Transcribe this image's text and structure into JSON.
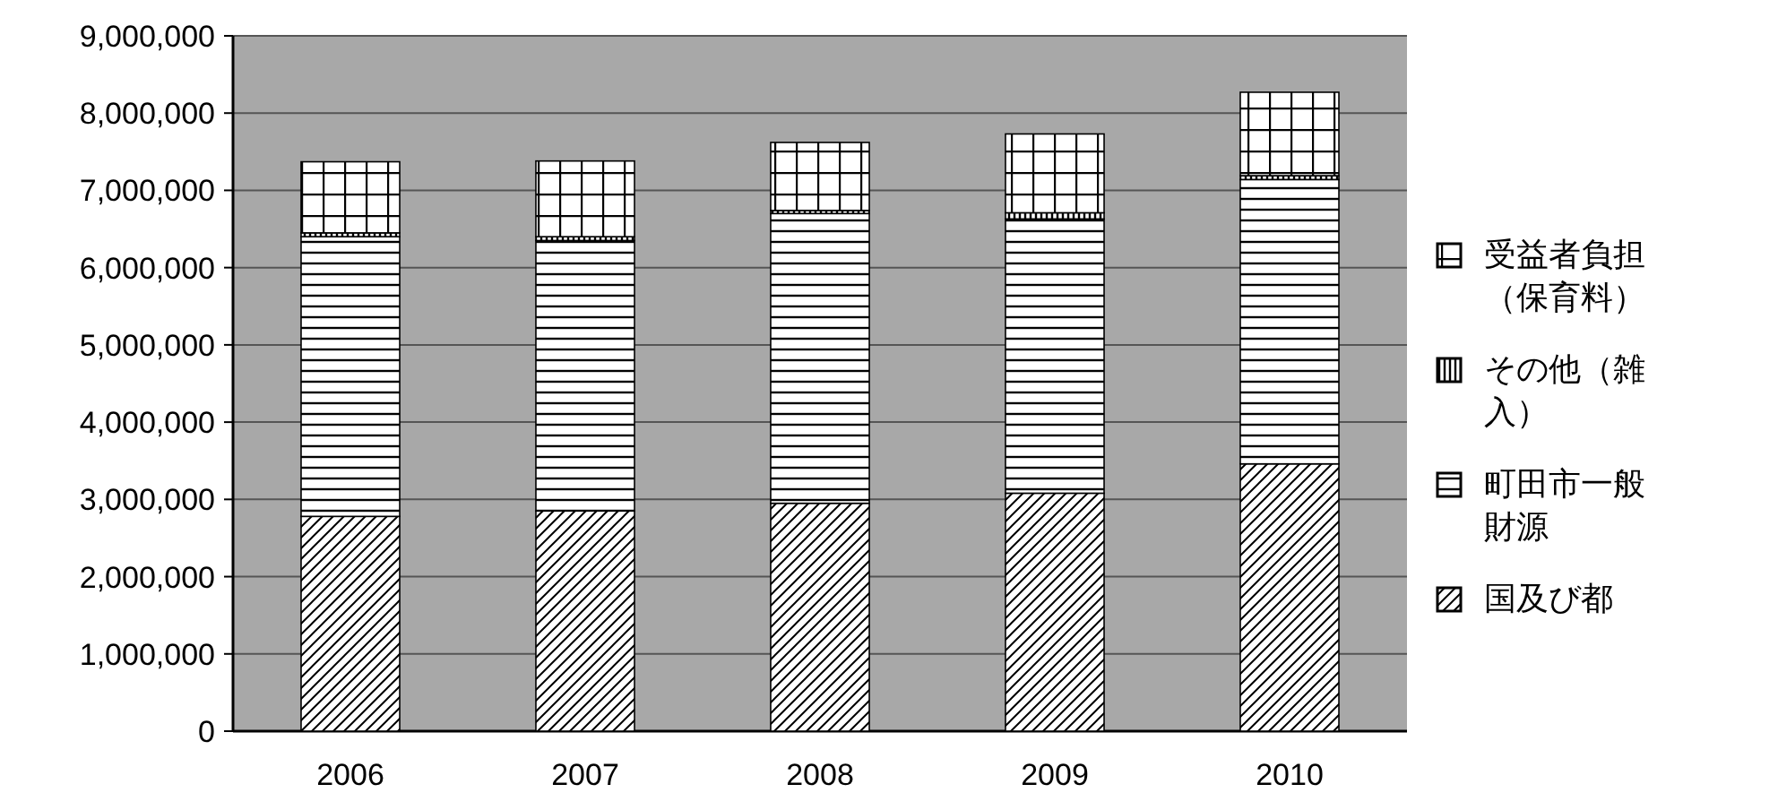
{
  "chart_data": {
    "type": "bar",
    "stacked": true,
    "categories": [
      "2006",
      "2007",
      "2008",
      "2009",
      "2010"
    ],
    "series": [
      {
        "name": "国及び都",
        "color": "#000000",
        "values": [
          2780000,
          2850000,
          2950000,
          3080000,
          3460000
        ]
      },
      {
        "name": "町田市一般財源",
        "color": "#000000",
        "values": [
          3620000,
          3500000,
          3750000,
          3550000,
          3680000
        ]
      },
      {
        "name": "その他（雑入）",
        "color": "#000000",
        "values": [
          50000,
          50000,
          40000,
          80000,
          50000
        ]
      },
      {
        "name": "受益者負担（保育料）",
        "color": "#000000",
        "values": [
          920000,
          980000,
          880000,
          1020000,
          1080000
        ]
      }
    ],
    "ylim": [
      0,
      9000000
    ],
    "yticks": [
      {
        "value": 0,
        "label": "0"
      },
      {
        "value": 1000000,
        "label": "1,000,000"
      },
      {
        "value": 2000000,
        "label": "2,000,000"
      },
      {
        "value": 3000000,
        "label": "3,000,000"
      },
      {
        "value": 4000000,
        "label": "4,000,000"
      },
      {
        "value": 5000000,
        "label": "5,000,000"
      },
      {
        "value": 6000000,
        "label": "6,000,000"
      },
      {
        "value": 7000000,
        "label": "7,000,000"
      },
      {
        "value": 8000000,
        "label": "8,000,000"
      },
      {
        "value": 9000000,
        "label": "9,000,000"
      }
    ],
    "grid": "y",
    "legend": "right"
  }
}
